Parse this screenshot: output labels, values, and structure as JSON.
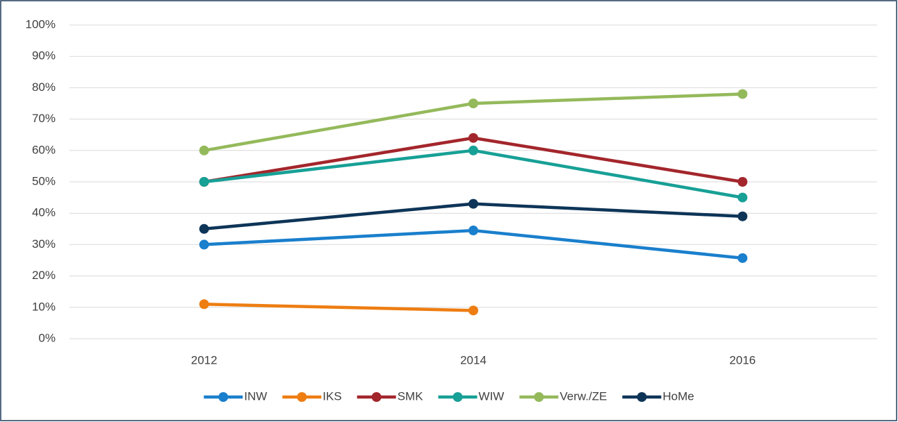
{
  "chart_data": {
    "type": "line",
    "categories": [
      "2012",
      "2014",
      "2016"
    ],
    "series": [
      {
        "name": "INW",
        "color": "#1a7fcc",
        "values": [
          30,
          34.5,
          25.7
        ]
      },
      {
        "name": "IKS",
        "color": "#ee7d12",
        "values": [
          11,
          9,
          null
        ]
      },
      {
        "name": "SMK",
        "color": "#a3262c",
        "values": [
          50,
          64,
          50
        ]
      },
      {
        "name": "WIW",
        "color": "#17a096",
        "values": [
          50,
          60,
          45
        ]
      },
      {
        "name": "Verw./ZE",
        "color": "#94b95b",
        "values": [
          60,
          75,
          78
        ]
      },
      {
        "name": "HoMe",
        "color": "#0e3558",
        "values": [
          35,
          43,
          39
        ]
      }
    ],
    "ylim": [
      0,
      100
    ],
    "yticks": [
      {
        "value": 0,
        "label": "0%"
      },
      {
        "value": 10,
        "label": "10%"
      },
      {
        "value": 20,
        "label": "20%"
      },
      {
        "value": 30,
        "label": "30%"
      },
      {
        "value": 40,
        "label": "40%"
      },
      {
        "value": 50,
        "label": "50%"
      },
      {
        "value": 60,
        "label": "60%"
      },
      {
        "value": 70,
        "label": "70%"
      },
      {
        "value": 80,
        "label": "80%"
      },
      {
        "value": 90,
        "label": "90%"
      },
      {
        "value": 100,
        "label": "100%"
      }
    ],
    "grid": true,
    "legend": "bottom"
  }
}
